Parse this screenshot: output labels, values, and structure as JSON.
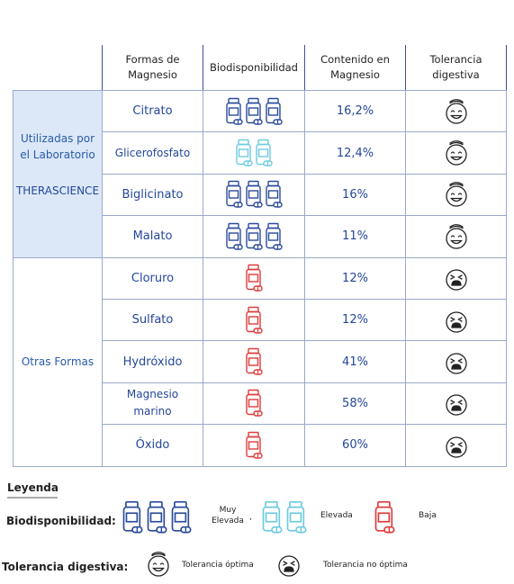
{
  "table": {
    "headers": [
      "Formas de Magnesio",
      "Biodisponibilidad",
      "Contenido en Magnesio",
      "Tolerancia digestiva"
    ],
    "groups": [
      {
        "label": "Utilizadas por el Laboratorio",
        "brand": "THERASCIENCE",
        "background": "#dce8f8",
        "rows": [
          {
            "form": "Citrato",
            "content": "16,2%",
            "bio_icons": 3,
            "bio_color": "#2a4b9b",
            "tolerance_optimal": true
          },
          {
            "form": "Glicerofosfato",
            "content": "12,4%",
            "bio_icons": 2,
            "bio_color": "#6ccbe0",
            "tolerance_optimal": true
          },
          {
            "form": "Biglicinato",
            "content": "16%",
            "bio_icons": 3,
            "bio_color": "#2a4b9b",
            "tolerance_optimal": true
          },
          {
            "form": "Malato",
            "content": "11%",
            "bio_icons": 3,
            "bio_color": "#2a4b9b",
            "tolerance_optimal": true
          }
        ]
      },
      {
        "label": "Otras Formas",
        "rows": [
          {
            "form": "Cloruro",
            "content": "12%",
            "bio_icons": 1,
            "bio_color": "#e03a3a",
            "tolerance_optimal": false
          },
          {
            "form": "Sulfato",
            "content": "12%",
            "bio_icons": 1,
            "bio_color": "#e03a3a",
            "tolerance_optimal": false
          },
          {
            "form": "Hydróxido",
            "content": "41%",
            "bio_icons": 1,
            "bio_color": "#e03a3a",
            "tolerance_optimal": false
          },
          {
            "form": "Magnesio marino",
            "content": "58%",
            "bio_icons": 1,
            "bio_color": "#e03a3a",
            "tolerance_optimal": false
          },
          {
            "form": "Óxido",
            "content": "60%",
            "bio_icons": 1,
            "bio_color": "#e03a3a",
            "tolerance_optimal": false
          }
        ]
      }
    ]
  },
  "legend": {
    "title": "Leyenda",
    "bio_label": "Biodisponibilidad:",
    "bio_items": [
      {
        "label": "Muy Elevada",
        "icons": 3,
        "color": "#2a4b9b"
      },
      {
        "label": "Elevada",
        "icons": 2,
        "color": "#6ccbe0"
      },
      {
        "label": "Baja",
        "icons": 1,
        "color": "#e03a3a"
      }
    ],
    "separator": ",",
    "tolerance_label": "Tolerancia digestiva:",
    "tolerance_items": [
      {
        "label": "Tolerancia óptima",
        "optimal": true
      },
      {
        "label": "Tolerancia no óptima",
        "optimal": false
      }
    ]
  }
}
